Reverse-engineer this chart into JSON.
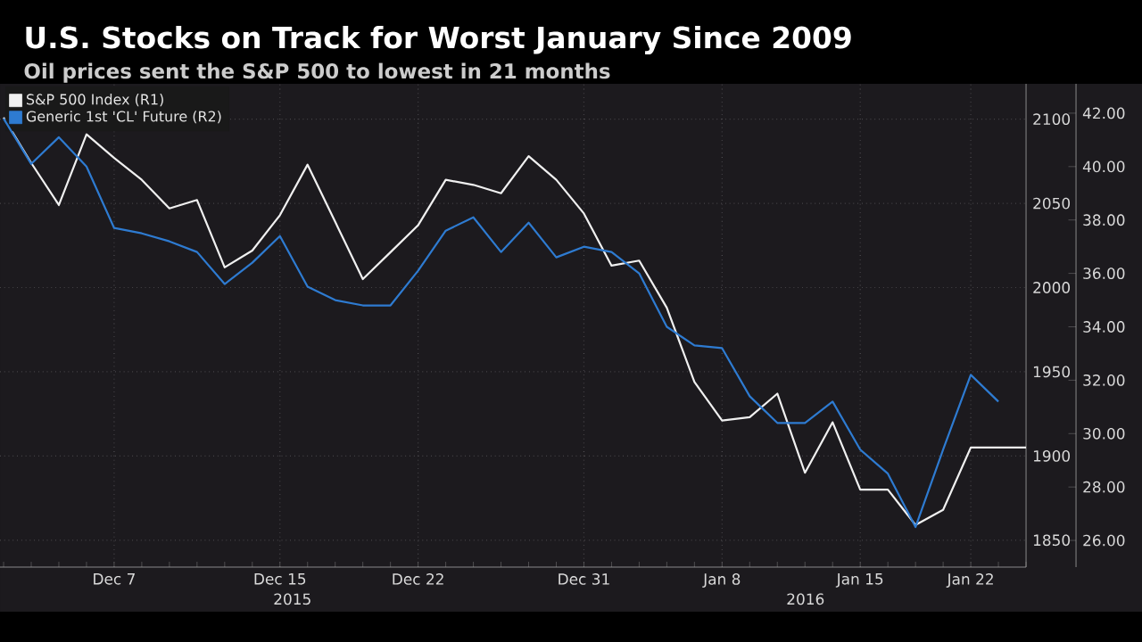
{
  "chart_data": {
    "type": "line",
    "title": "U.S. Stocks on Track for Worst January Since 2009",
    "subtitle": "Oil prices sent the S&P 500 to lowest in 21 months",
    "categories": [
      null,
      null,
      null,
      null,
      "Dec 7",
      null,
      null,
      null,
      null,
      null,
      "Dec 15",
      null,
      null,
      null,
      null,
      "Dec 22",
      null,
      null,
      null,
      null,
      null,
      "Dec 31",
      null,
      null,
      null,
      null,
      "Jan 8",
      null,
      null,
      null,
      null,
      "Jan 15",
      null,
      null,
      null,
      "Jan 22",
      null,
      null
    ],
    "series": [
      {
        "name": "S&P 500 Index (R1)",
        "color": "#f0f0f0",
        "values": [
          2101,
          2074,
          2049,
          2091,
          2077,
          2064,
          2047,
          2052,
          2012,
          2022,
          2043,
          2073,
          2039,
          2005,
          2021,
          2037,
          2064,
          2061,
          2056,
          2078,
          2064,
          2044,
          2013,
          2016,
          1988,
          1944,
          1921,
          1923,
          1937,
          1890,
          1920,
          1880,
          1880,
          1859,
          1868,
          1905,
          1905,
          1905
        ]
      },
      {
        "name": "Generic 1st 'CL' Future (R2)",
        "color": "#2e7bd1",
        "axis": "y2",
        "values": [
          41.8,
          40.1,
          41.1,
          40.0,
          37.7,
          37.5,
          37.2,
          36.8,
          35.6,
          36.4,
          37.4,
          35.5,
          35.0,
          34.8,
          34.8,
          36.1,
          37.6,
          38.1,
          36.8,
          37.9,
          36.6,
          37.0,
          36.8,
          36.0,
          34.0,
          33.3,
          33.2,
          31.4,
          30.4,
          30.4,
          31.2,
          29.4,
          28.5,
          26.5,
          29.4,
          32.2,
          31.2,
          null
        ]
      }
    ],
    "ylim": [
      1834,
      2121
    ],
    "yticks": [
      1850,
      1900,
      1950,
      2000,
      2050,
      2100
    ],
    "y2lim": [
      25.0,
      43.1
    ],
    "y2ticks": [
      {
        "value": 26,
        "label": "26.00"
      },
      {
        "value": 28,
        "label": "28.00"
      },
      {
        "value": 30,
        "label": "30.00"
      },
      {
        "value": 32,
        "label": "32.00"
      },
      {
        "value": 34,
        "label": "34.00"
      },
      {
        "value": 36,
        "label": "36.00"
      },
      {
        "value": 38,
        "label": "38.00"
      },
      {
        "value": 40,
        "label": "40.00"
      },
      {
        "value": 42,
        "label": "42.00"
      }
    ],
    "annotations": [
      "2015",
      "2016"
    ],
    "grid": true,
    "legend": "top left"
  }
}
